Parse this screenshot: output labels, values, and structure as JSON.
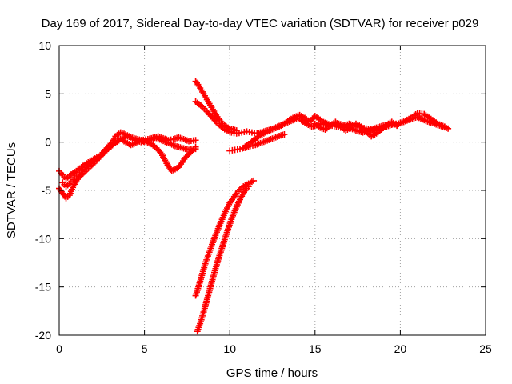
{
  "chart_data": {
    "type": "scatter",
    "title": "Day 169 of 2017, Sidereal Day-to-day VTEC variation (SDTVAR) for receiver p029",
    "xlabel": "GPS time / hours",
    "ylabel": "SDTVAR / TECUs",
    "xlim": [
      0,
      25
    ],
    "ylim": [
      -20,
      10
    ],
    "xticks": [
      0,
      5,
      10,
      15,
      20,
      25
    ],
    "yticks": [
      -20,
      -15,
      -10,
      -5,
      0,
      5,
      10
    ],
    "xtick_labels": [
      "0",
      "5",
      "10",
      "15",
      "20",
      "25"
    ],
    "ytick_labels": [
      "-20",
      "-15",
      "-10",
      "-5",
      "0",
      "5",
      "10"
    ],
    "grid": true,
    "marker": "+",
    "series_color": "#ff0000",
    "series": [
      {
        "x": [
          0.0,
          0.2,
          0.4,
          0.6,
          0.8,
          1.0,
          1.3,
          1.6,
          2.0,
          2.4,
          2.8,
          3.1,
          3.3,
          3.6,
          3.9,
          4.2,
          4.5,
          4.8,
          5.1,
          5.4,
          5.8,
          6.1,
          6.4,
          6.7,
          7.0,
          7.3,
          7.6,
          8.0
        ],
        "y": [
          -3.0,
          -3.4,
          -3.8,
          -3.5,
          -3.2,
          -3.0,
          -2.6,
          -2.2,
          -1.8,
          -1.4,
          -0.6,
          0.0,
          0.6,
          1.0,
          0.8,
          0.5,
          0.2,
          0.0,
          0.1,
          0.3,
          0.6,
          0.4,
          0.2,
          0.3,
          0.5,
          0.3,
          0.1,
          0.2
        ]
      },
      {
        "x": [
          0.0,
          0.2,
          0.4,
          0.6,
          0.8,
          1.0,
          1.3,
          1.6,
          1.9,
          2.2,
          2.5,
          2.8,
          3.0,
          3.3,
          3.6,
          3.9,
          4.2,
          4.5,
          4.8,
          5.1,
          5.4,
          5.7,
          6.0,
          6.3,
          6.6,
          7.0,
          7.4,
          7.8,
          8.0
        ],
        "y": [
          -4.8,
          -5.3,
          -5.8,
          -5.5,
          -4.7,
          -4.0,
          -3.4,
          -2.9,
          -2.4,
          -1.9,
          -1.3,
          -0.8,
          -0.4,
          0.0,
          0.3,
          0.0,
          -0.3,
          -0.1,
          0.2,
          0.0,
          -0.2,
          -0.6,
          -1.2,
          -2.2,
          -3.0,
          -2.6,
          -1.6,
          -0.9,
          -0.5
        ]
      },
      {
        "x": [
          0.2,
          0.4,
          0.6,
          0.8,
          1.0,
          1.3,
          1.6,
          2.0,
          2.4,
          2.8,
          3.2,
          3.6,
          4.0,
          4.4,
          4.8,
          5.2,
          5.6,
          6.0,
          6.4,
          6.8,
          7.2,
          7.6,
          8.0
        ],
        "y": [
          -4.2,
          -4.6,
          -4.3,
          -3.9,
          -3.5,
          -3.0,
          -2.5,
          -2.0,
          -1.5,
          -0.8,
          -0.2,
          0.3,
          0.6,
          0.4,
          0.2,
          0.3,
          0.5,
          0.2,
          -0.1,
          -0.4,
          -0.6,
          -0.8,
          -0.7
        ]
      },
      {
        "x": [
          8.0,
          8.2,
          8.4,
          8.6,
          8.8,
          9.0,
          9.2,
          9.4,
          9.6,
          9.8,
          10.0,
          10.2,
          10.4,
          10.6,
          10.8,
          11.0,
          11.2,
          11.4
        ],
        "y": [
          -15.9,
          -14.8,
          -13.6,
          -12.4,
          -11.4,
          -10.4,
          -9.5,
          -8.6,
          -7.8,
          -7.0,
          -6.3,
          -5.8,
          -5.3,
          -4.9,
          -4.6,
          -4.4,
          -4.2,
          -4.0
        ]
      },
      {
        "x": [
          8.1,
          8.3,
          8.5,
          8.7,
          8.9,
          9.1,
          9.3,
          9.5,
          9.7,
          9.9,
          10.1,
          10.3,
          10.5,
          10.7,
          10.9,
          11.1
        ],
        "y": [
          -19.6,
          -18.6,
          -17.4,
          -16.1,
          -14.8,
          -13.5,
          -12.3,
          -11.2,
          -10.1,
          -9.0,
          -8.0,
          -7.1,
          -6.3,
          -5.6,
          -5.0,
          -4.6
        ]
      },
      {
        "x": [
          8.0,
          8.2,
          8.4,
          8.6,
          8.8,
          9.0,
          9.2,
          9.4,
          9.6,
          9.8,
          10.0,
          10.2,
          10.4
        ],
        "y": [
          6.3,
          5.8,
          5.2,
          4.6,
          4.0,
          3.4,
          2.8,
          2.3,
          1.9,
          1.6,
          1.4,
          1.3,
          1.2
        ]
      },
      {
        "x": [
          8.0,
          8.3,
          8.6,
          8.9,
          9.2,
          9.5,
          9.8,
          10.1,
          10.4,
          10.7,
          11.0,
          11.3,
          11.6,
          12.0,
          12.4,
          12.8,
          13.2,
          13.6,
          14.0,
          14.4,
          14.8,
          15.2,
          15.6,
          16.0,
          16.5,
          17.0,
          17.5,
          18.0,
          18.5,
          19.0,
          19.5,
          20.0,
          20.5,
          21.0,
          21.5,
          22.0,
          22.5,
          22.8
        ],
        "y": [
          4.2,
          3.8,
          3.3,
          2.7,
          2.1,
          1.6,
          1.2,
          1.0,
          0.9,
          1.0,
          1.1,
          1.0,
          0.9,
          1.1,
          1.3,
          1.6,
          1.9,
          2.2,
          2.5,
          2.0,
          1.6,
          1.8,
          2.0,
          1.7,
          1.5,
          1.9,
          1.6,
          1.4,
          1.2,
          1.5,
          1.8,
          2.0,
          2.3,
          2.6,
          2.2,
          1.9,
          1.6,
          1.4
        ]
      },
      {
        "x": [
          10.0,
          10.3,
          10.6,
          10.9,
          11.2,
          11.5,
          11.8,
          12.1,
          12.4,
          12.7,
          13.0,
          13.2
        ],
        "y": [
          -0.9,
          -0.8,
          -0.7,
          -0.6,
          -0.4,
          -0.3,
          -0.1,
          0.1,
          0.3,
          0.5,
          0.7,
          0.8
        ]
      },
      {
        "x": [
          10.8,
          11.1,
          11.4,
          11.7,
          12.0,
          12.3,
          12.6,
          12.9,
          13.2,
          13.5,
          13.8,
          14.1,
          14.4,
          14.7,
          15.0,
          15.4,
          15.8,
          16.2,
          16.6,
          17.0,
          17.4,
          17.8,
          18.2,
          18.6,
          19.0,
          19.4,
          19.8,
          20.2,
          20.6,
          21.0,
          21.4,
          21.8,
          22.2,
          22.6
        ],
        "y": [
          -0.6,
          -0.2,
          0.2,
          0.6,
          0.9,
          1.2,
          1.4,
          1.6,
          1.9,
          2.3,
          2.6,
          2.8,
          2.5,
          2.1,
          2.7,
          2.2,
          1.7,
          2.0,
          1.8,
          1.5,
          1.2,
          1.0,
          1.2,
          1.5,
          1.7,
          1.9,
          1.8,
          2.1,
          2.5,
          3.0,
          2.9,
          2.4,
          1.9,
          1.6
        ]
      },
      {
        "x": [
          15.0,
          15.3,
          15.6,
          15.9,
          16.2,
          16.5,
          16.8,
          17.1,
          17.4,
          17.7,
          18.0,
          18.3,
          18.6,
          18.9,
          19.2,
          19.5,
          19.8
        ],
        "y": [
          1.9,
          1.5,
          1.3,
          1.7,
          2.1,
          1.6,
          1.2,
          1.5,
          1.9,
          1.6,
          1.1,
          0.6,
          0.9,
          1.3,
          1.8,
          2.1,
          1.7
        ]
      }
    ]
  }
}
